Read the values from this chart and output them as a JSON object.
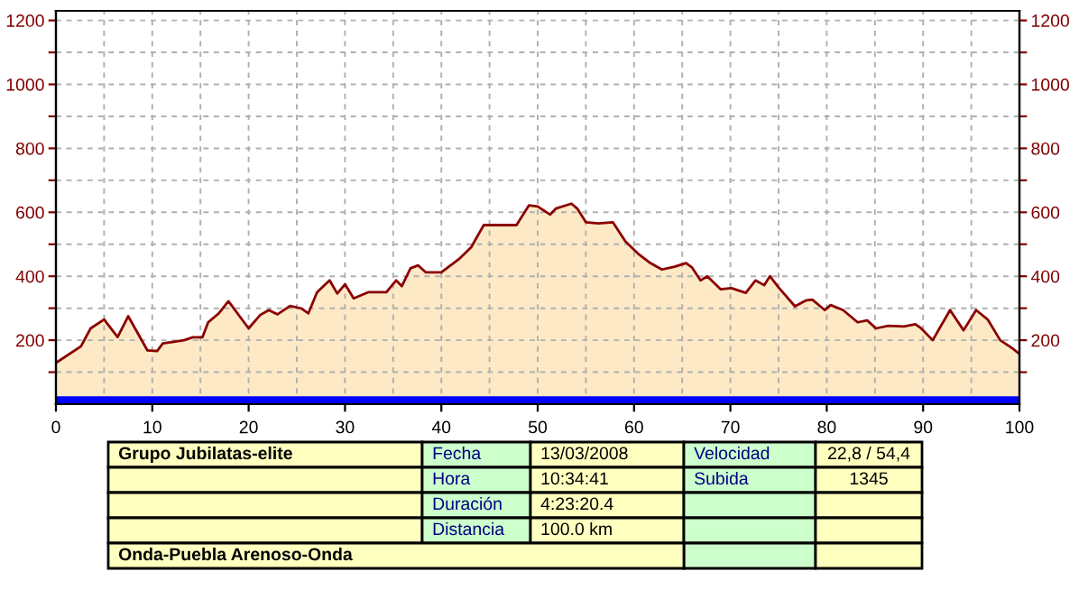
{
  "chart_data": {
    "type": "area",
    "x": [
      0,
      2.6,
      3.6,
      5,
      6.4,
      7.5,
      9.5,
      10.5,
      11.1,
      12.4,
      13.3,
      14.2,
      15.2,
      15.8,
      16.9,
      17.9,
      20,
      21.2,
      22.1,
      23,
      24.3,
      25.5,
      26.2,
      27.1,
      28.4,
      29.2,
      30,
      30.9,
      32.4,
      34.3,
      35.3,
      35.9,
      36.8,
      37.6,
      38.4,
      40,
      41.8,
      43.1,
      44.4,
      47.8,
      49.1,
      50,
      51.3,
      51.9,
      53.5,
      54.1,
      55,
      56.3,
      57.8,
      59.1,
      60.4,
      61.6,
      62.9,
      64.2,
      65.4,
      66,
      66.9,
      67.6,
      69,
      70.1,
      71.6,
      72.6,
      73.5,
      74.1,
      75,
      76.7,
      77.9,
      78.5,
      79.8,
      80.4,
      81.7,
      83.2,
      84.2,
      85.1,
      86.4,
      88,
      89.2,
      89.8,
      91,
      91.7,
      92.8,
      94.2,
      95.5,
      96.7,
      98,
      99.2,
      100
    ],
    "series": [
      {
        "color": "#8b0000",
        "values": [
          129,
          181,
          237,
          265,
          210,
          275,
          168,
          166,
          190,
          196,
          200,
          209,
          209,
          256,
          284,
          322,
          237,
          279,
          294,
          281,
          307,
          299,
          284,
          350,
          387,
          346,
          375,
          331,
          350,
          350,
          387,
          369,
          425,
          434,
          412,
          412,
          453,
          491,
          560,
          560,
          622,
          618,
          593,
          612,
          627,
          612,
          569,
          565,
          569,
          509,
          471,
          443,
          421,
          430,
          441,
          428,
          387,
          400,
          359,
          363,
          348,
          387,
          372,
          400,
          365,
          306,
          325,
          327,
          294,
          310,
          294,
          256,
          262,
          237,
          245,
          243,
          250,
          237,
          200,
          237,
          294,
          231,
          294,
          265,
          200,
          176,
          157
        ]
      }
    ],
    "xlim": [
      0,
      100
    ],
    "xticks": [
      0,
      10,
      20,
      30,
      40,
      50,
      60,
      70,
      80,
      90,
      100
    ],
    "ylim": [
      0,
      1230
    ],
    "yticks": [
      {
        "value": 100,
        "label": null
      },
      200,
      {
        "value": 300,
        "label": null
      },
      400,
      {
        "value": 500,
        "label": null
      },
      600,
      {
        "value": 700,
        "label": null
      },
      800,
      {
        "value": 900,
        "label": null
      },
      1000,
      {
        "value": 1100,
        "label": null
      },
      1200
    ],
    "y2lim": [
      0,
      1230
    ],
    "y2ticks": [
      {
        "value": 100,
        "label": null
      },
      200,
      {
        "value": 300,
        "label": null
      },
      400,
      {
        "value": 500,
        "label": null
      },
      600,
      {
        "value": 700,
        "label": null
      },
      800,
      {
        "value": 900,
        "label": null
      },
      1000,
      {
        "value": 1100,
        "label": null
      },
      1200
    ],
    "bands": [
      {
        "axis": "y",
        "from": 0,
        "to": 25,
        "color": "#0000ff"
      }
    ],
    "grid": true,
    "annotations": [
      "Grupo Jubilatas-elite",
      "Fecha",
      "13/03/2008",
      "Hora",
      "10:34:41",
      "Duración",
      "4:23:20.4",
      "Distancia",
      "100.0 km",
      "Velocidad",
      "22,8 / 54,4",
      "Subida",
      "1345",
      "Onda-Puebla Arenoso-Onda"
    ]
  }
}
